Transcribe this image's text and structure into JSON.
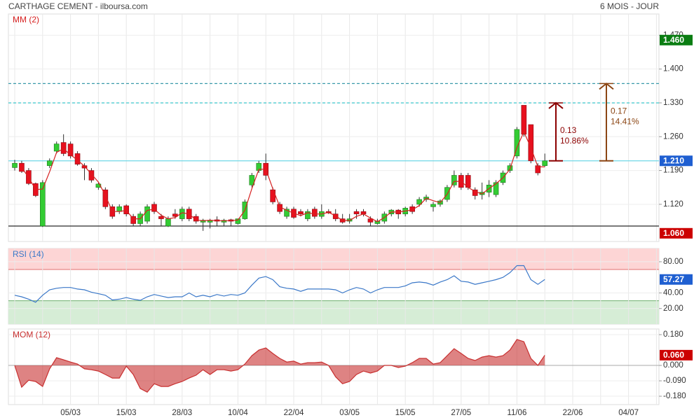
{
  "header": {
    "title": "CARTHAGE CEMENT - ilboursa.com",
    "period": "6 MOIS - JOUR"
  },
  "chart_data": [
    {
      "type": "candlestick",
      "categories": [
        null,
        null,
        null,
        null,
        null,
        null,
        null,
        null,
        "05/03",
        null,
        null,
        null,
        null,
        null,
        null,
        null,
        "15/03",
        null,
        null,
        null,
        null,
        null,
        null,
        null,
        "28/03",
        null,
        null,
        null,
        null,
        null,
        null,
        null,
        "10/04",
        null,
        null,
        null,
        null,
        null,
        null,
        null,
        "22/04",
        null,
        null,
        null,
        null,
        null,
        null,
        null,
        "03/05",
        null,
        null,
        null,
        null,
        null,
        null,
        null,
        "15/05",
        null,
        null,
        null,
        null,
        null,
        null,
        null,
        "27/05",
        null,
        null,
        null,
        null,
        null,
        null,
        null,
        "11/06",
        null,
        null,
        null,
        null,
        null,
        null,
        null,
        "22/06",
        null,
        null,
        null,
        null,
        null,
        null,
        null,
        "04/07",
        null,
        null,
        null,
        null
      ],
      "open": [
        1.196,
        1.205,
        1.19,
        1.163,
        1.075,
        1.2,
        1.23,
        1.248,
        1.245,
        1.225,
        1.2,
        1.19,
        1.155,
        1.15,
        1.115,
        1.105,
        1.117,
        1.095,
        1.08,
        1.085,
        1.12,
        1.095,
        1.075,
        1.1,
        1.09,
        1.11,
        1.095,
        1.083,
        1.083,
        1.088,
        1.083,
        1.088,
        1.08,
        1.09,
        1.16,
        1.19,
        1.205,
        1.15,
        1.12,
        1.095,
        1.11,
        1.105,
        1.09,
        1.11,
        1.095,
        1.105,
        1.1,
        1.09,
        1.085,
        1.105,
        1.105,
        1.09,
        1.08,
        1.085,
        1.1,
        1.108,
        1.1,
        1.115,
        1.12,
        1.13,
        1.115,
        1.12,
        1.13,
        1.16,
        1.18,
        1.18,
        1.15,
        1.14,
        1.145,
        1.14,
        1.165,
        1.19,
        1.22,
        1.325,
        1.285,
        1.2,
        1.2,
        null,
        null,
        null,
        null,
        null,
        null,
        null,
        null,
        null,
        null,
        null,
        null,
        null,
        null,
        null,
        null
      ],
      "high": [
        1.212,
        1.21,
        1.195,
        1.165,
        1.17,
        1.215,
        1.25,
        1.265,
        1.25,
        1.23,
        1.205,
        1.195,
        1.165,
        1.155,
        1.12,
        1.12,
        1.12,
        1.1,
        1.105,
        1.12,
        1.125,
        1.1,
        1.095,
        1.11,
        1.115,
        1.115,
        1.1,
        1.09,
        1.09,
        1.095,
        1.09,
        1.09,
        1.09,
        1.13,
        1.185,
        1.21,
        1.225,
        1.155,
        1.125,
        1.115,
        1.115,
        1.11,
        1.11,
        1.115,
        1.12,
        1.11,
        1.11,
        1.1,
        1.1,
        1.11,
        1.11,
        1.095,
        1.09,
        1.105,
        1.11,
        1.11,
        1.115,
        1.12,
        1.135,
        1.14,
        1.125,
        1.13,
        1.16,
        1.19,
        1.185,
        1.185,
        1.155,
        1.165,
        1.17,
        1.17,
        1.19,
        1.205,
        1.28,
        1.325,
        1.285,
        1.205,
        1.225,
        null,
        null,
        null,
        null,
        null,
        null,
        null,
        null,
        null,
        null,
        null,
        null,
        null,
        null,
        null,
        null
      ],
      "low": [
        1.19,
        1.185,
        1.16,
        1.135,
        1.073,
        1.195,
        1.225,
        1.22,
        1.215,
        1.2,
        1.17,
        1.165,
        1.15,
        1.11,
        1.09,
        1.1,
        1.095,
        1.075,
        1.075,
        1.08,
        1.1,
        1.075,
        1.073,
        1.09,
        1.085,
        1.085,
        1.08,
        1.065,
        1.07,
        1.075,
        1.075,
        1.075,
        1.078,
        1.088,
        1.155,
        1.185,
        1.17,
        1.12,
        1.1,
        1.09,
        1.09,
        1.095,
        1.085,
        1.09,
        1.09,
        1.1,
        1.085,
        1.08,
        1.08,
        1.09,
        1.095,
        1.075,
        1.078,
        1.08,
        1.095,
        1.09,
        1.095,
        1.1,
        1.115,
        1.125,
        1.105,
        1.115,
        1.125,
        1.155,
        1.15,
        1.15,
        1.13,
        1.13,
        1.135,
        1.135,
        1.16,
        1.185,
        1.215,
        1.26,
        1.205,
        1.18,
        1.198,
        null,
        null,
        null,
        null,
        null,
        null,
        null,
        null,
        null,
        null,
        null,
        null,
        null,
        null,
        null,
        null
      ],
      "close": [
        1.205,
        1.188,
        1.163,
        1.138,
        1.165,
        1.21,
        1.245,
        1.225,
        1.22,
        1.203,
        1.195,
        1.17,
        1.162,
        1.115,
        1.095,
        1.115,
        1.1,
        1.08,
        1.1,
        1.115,
        1.105,
        1.09,
        1.09,
        1.095,
        1.11,
        1.09,
        1.085,
        1.087,
        1.087,
        1.085,
        1.087,
        1.085,
        1.09,
        1.125,
        1.18,
        1.205,
        1.18,
        1.125,
        1.105,
        1.11,
        1.093,
        1.1,
        1.105,
        1.095,
        1.105,
        1.102,
        1.09,
        1.083,
        1.09,
        1.1,
        1.1,
        1.083,
        1.085,
        1.1,
        1.108,
        1.1,
        1.112,
        1.105,
        1.13,
        1.135,
        1.12,
        1.127,
        1.155,
        1.18,
        1.155,
        1.155,
        1.138,
        1.145,
        1.16,
        1.165,
        1.185,
        1.2,
        1.275,
        1.265,
        1.21,
        1.185,
        1.21,
        null,
        null,
        null,
        null,
        null,
        null,
        null,
        null,
        null,
        null,
        null,
        null,
        null,
        null,
        null,
        null
      ],
      "up_color": "#33cc33",
      "down_color": "#e8101e",
      "series": [
        {
          "name": "MM (2)",
          "color": "#d62020",
          "values": [
            null,
            1.1965,
            1.1755,
            1.1505,
            1.1515,
            1.1875,
            1.2275,
            1.235,
            1.2225,
            1.2115,
            1.199,
            1.1825,
            1.166,
            1.1385,
            1.105,
            1.105,
            1.1075,
            1.09,
            1.09,
            1.1075,
            1.11,
            1.0975,
            1.09,
            1.0925,
            1.1025,
            1.1,
            1.0875,
            1.086,
            1.087,
            1.086,
            1.086,
            1.086,
            1.0875,
            1.1075,
            1.1525,
            1.1925,
            1.1925,
            1.1525,
            1.115,
            1.1075,
            1.1015,
            1.0965,
            1.1025,
            1.1,
            1.1,
            1.1035,
            1.096,
            1.0865,
            1.0865,
            1.095,
            1.1,
            1.0915,
            1.084,
            1.0925,
            1.104,
            1.104,
            1.106,
            1.1085,
            1.1175,
            1.1325,
            1.1275,
            1.1235,
            1.141,
            1.1675,
            1.1675,
            1.155,
            1.1465,
            1.1415,
            1.1525,
            1.1625,
            1.175,
            1.1925,
            1.2375,
            1.27,
            1.2375,
            1.1975,
            1.1975,
            null,
            null,
            null,
            null,
            null,
            null,
            null,
            null,
            null,
            null,
            null,
            null,
            null,
            null,
            null,
            null
          ]
        }
      ],
      "ylim": [
        1.043,
        1.514
      ],
      "yticks": [
        {
          "value": 1.47,
          "label": "1.470"
        },
        {
          "value": 1.4,
          "label": "1.400"
        },
        {
          "value": 1.33,
          "label": "1.330"
        },
        {
          "value": 1.26,
          "label": "1.260"
        },
        {
          "value": 1.19,
          "label": "1.190"
        },
        {
          "value": 1.12,
          "label": "1.120"
        }
      ],
      "levels": [
        {
          "value": 1.21,
          "color": "#6fd8e6",
          "style": "solid"
        },
        {
          "value": 1.33,
          "color": "#3cc8cc",
          "style": "dashed"
        },
        {
          "value": 1.37,
          "color": "#3a9aaa",
          "style": "dashed"
        },
        {
          "value": 1.075,
          "color": "#111111",
          "style": "solid"
        }
      ],
      "markers": [
        {
          "value": 1.46,
          "label": "1.460",
          "color": "#0a7d12"
        },
        {
          "value": 1.21,
          "label": "1.210",
          "color": "#1f5fd1"
        },
        {
          "value": 1.06,
          "label": "1.060",
          "color": "#cc0000"
        }
      ],
      "annotations": [
        {
          "from": 1.21,
          "to": 1.33,
          "change": 0.13,
          "label": "10.86%",
          "color": "#8b0000"
        },
        {
          "from": 1.21,
          "to": 1.37,
          "change": 0.17,
          "label": "14.41%",
          "color": "#8b4513"
        }
      ]
    },
    {
      "type": "line",
      "series": [
        {
          "name": "RSI (14)",
          "color": "#3b78c8",
          "values": [
            37,
            35,
            32,
            28,
            37,
            44,
            46,
            47,
            47,
            45,
            44,
            41,
            39,
            37,
            31,
            32,
            34,
            32,
            30.5,
            35,
            38,
            36,
            34,
            35,
            35,
            40,
            35,
            37,
            35,
            38,
            36,
            38,
            37,
            40,
            50,
            59,
            61,
            57,
            48,
            46,
            45,
            42,
            45,
            45,
            45,
            45,
            44,
            40,
            44,
            47,
            45,
            40,
            44,
            47,
            47,
            47,
            49,
            53,
            54,
            53,
            50,
            54,
            57,
            62,
            55,
            54,
            51,
            53,
            55,
            57,
            60,
            66,
            75,
            75,
            57,
            51,
            57.27
          ]
        }
      ],
      "ylim": [
        0,
        97
      ],
      "yticks": [
        {
          "value": 80,
          "label": "80.00"
        },
        {
          "value": 40,
          "label": "40.00"
        },
        {
          "value": 20,
          "label": "20.00"
        }
      ],
      "bands": [
        {
          "from": 70,
          "to": 97,
          "color": "#fdd5d5",
          "edge": "#e07070"
        },
        {
          "from": 0,
          "to": 30,
          "color": "#d6edd6",
          "edge": "#70b070"
        }
      ],
      "markers": [
        {
          "value": 57.27,
          "label": "57.27",
          "color": "#1f5fd1"
        }
      ]
    },
    {
      "type": "area",
      "series": [
        {
          "name": "MOM (12)",
          "color": "#c83030",
          "values": [
            0,
            -0.127,
            -0.086,
            -0.094,
            -0.123,
            -0.02,
            0.045,
            0.033,
            0.02,
            0.008,
            -0.02,
            -0.025,
            -0.033,
            -0.053,
            -0.074,
            -0.074,
            -0.004,
            -0.053,
            -0.135,
            -0.156,
            -0.107,
            -0.123,
            -0.123,
            -0.107,
            -0.094,
            -0.074,
            -0.057,
            -0.025,
            -0.053,
            -0.025,
            -0.025,
            -0.033,
            -0.025,
            0.008,
            0.057,
            0.09,
            0.102,
            0.07,
            0.041,
            0.02,
            0.025,
            0.008,
            0.016,
            0.016,
            0.02,
            0,
            -0.066,
            -0.107,
            -0.094,
            -0.053,
            -0.033,
            -0.045,
            -0.033,
            0,
            0,
            -0.012,
            -0.004,
            0.016,
            0.041,
            0.041,
            0.008,
            0.016,
            0.057,
            0.098,
            0.07,
            0.041,
            0.029,
            0.049,
            0.057,
            0.049,
            0.057,
            0.09,
            0.152,
            0.139,
            0.041,
            0,
            0.06
          ]
        }
      ],
      "ylim": [
        -0.229,
        0.213
      ],
      "yticks": [
        {
          "value": 0.18,
          "label": "0.180"
        },
        {
          "value": 0,
          "label": "0.000"
        },
        {
          "value": -0.09,
          "label": "-0.090"
        },
        {
          "value": -0.18,
          "label": "-0.180"
        }
      ],
      "markers": [
        {
          "value": 0.06,
          "label": "0.060",
          "color": "#cc0000"
        }
      ]
    }
  ]
}
